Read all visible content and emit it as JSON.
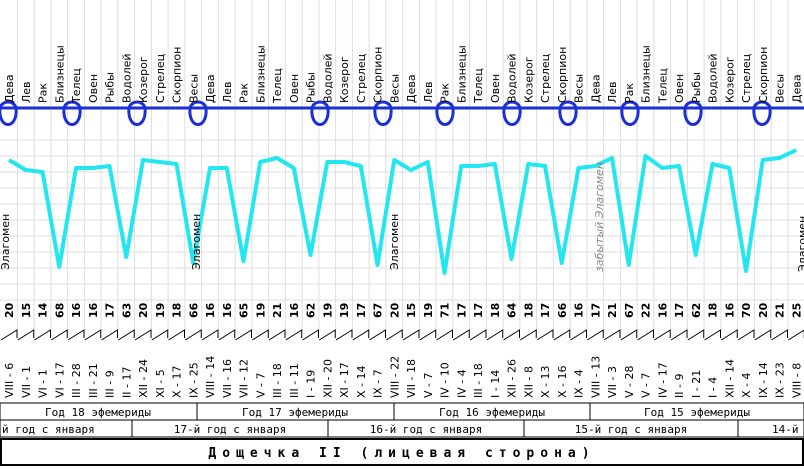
{
  "columns": [
    {
      "sign": "Дева",
      "number": "20",
      "date": "VIII - 6"
    },
    {
      "sign": "Лев",
      "number": "15",
      "date": "VII - 1"
    },
    {
      "sign": "Рак",
      "number": "14",
      "date": "VI - 1"
    },
    {
      "sign": "Близнецы",
      "number": "68",
      "date": "VI - 17"
    },
    {
      "sign": "Телец",
      "number": "16",
      "date": "III - 28"
    },
    {
      "sign": "Овен",
      "number": "16",
      "date": "III - 21"
    },
    {
      "sign": "Рыбы",
      "number": "17",
      "date": "III - 9"
    },
    {
      "sign": "Водолей",
      "number": "63",
      "date": "II - 17"
    },
    {
      "sign": "Козерог",
      "number": "20",
      "date": "XII - 24"
    },
    {
      "sign": "Стрелец",
      "number": "19",
      "date": "XI - 5"
    },
    {
      "sign": "Скорпион",
      "number": "18",
      "date": "X - 17"
    },
    {
      "sign": "Весы",
      "number": "66",
      "date": "IX - 25"
    },
    {
      "sign": "Дева",
      "number": "16",
      "date": "VIII - 14"
    },
    {
      "sign": "Лев",
      "number": "16",
      "date": "VII - 16"
    },
    {
      "sign": "Рак",
      "number": "65",
      "date": "VII - 12"
    },
    {
      "sign": "Близнецы",
      "number": "19",
      "date": "V - 7"
    },
    {
      "sign": "Телец",
      "number": "21",
      "date": "III - 18"
    },
    {
      "sign": "Овен",
      "number": "16",
      "date": "III - 11"
    },
    {
      "sign": "Рыбы",
      "number": "62",
      "date": "I - 19"
    },
    {
      "sign": "Водолей",
      "number": "19",
      "date": "XII - 20"
    },
    {
      "sign": "Козерог",
      "number": "19",
      "date": "XI - 17"
    },
    {
      "sign": "Стрелец",
      "number": "17",
      "date": "X - 14"
    },
    {
      "sign": "Скорпион",
      "number": "67",
      "date": "IX - 7"
    },
    {
      "sign": "Весы",
      "number": "20",
      "date": "VIII - 22"
    },
    {
      "sign": "Дева",
      "number": "15",
      "date": "VII - 18"
    },
    {
      "sign": "Лев",
      "number": "19",
      "date": "V - 7"
    },
    {
      "sign": "Рак",
      "number": "71",
      "date": "IV - 10"
    },
    {
      "sign": "Близнецы",
      "number": "17",
      "date": "IV - 4"
    },
    {
      "sign": "Телец",
      "number": "17",
      "date": "III - 18"
    },
    {
      "sign": "Овен",
      "number": "18",
      "date": "I - 14"
    },
    {
      "sign": "Водолей",
      "number": "64",
      "date": "XII - 26"
    },
    {
      "sign": "Козерог",
      "number": "18",
      "date": "XII - 8"
    },
    {
      "sign": "Стрелец",
      "number": "17",
      "date": "X - 13"
    },
    {
      "sign": "Скорпион",
      "number": "66",
      "date": "X - 16"
    },
    {
      "sign": "Весы",
      "number": "16",
      "date": "IX - 4"
    },
    {
      "sign": "Дева",
      "number": "17",
      "date": "VIII - 13"
    },
    {
      "sign": "Лев",
      "number": "21",
      "date": "VII - 3"
    },
    {
      "sign": "Рак",
      "number": "67",
      "date": "V - 28"
    },
    {
      "sign": "Близнецы",
      "number": "22",
      "date": "V - 7"
    },
    {
      "sign": "Телец",
      "number": "16",
      "date": "IV - 17"
    },
    {
      "sign": "Овен",
      "number": "17",
      "date": "II - 9"
    },
    {
      "sign": "Рыбы",
      "number": "62",
      "date": "I - 21"
    },
    {
      "sign": "Водолей",
      "number": "18",
      "date": "I - 4"
    },
    {
      "sign": "Козерог",
      "number": "16",
      "date": "XII - 14"
    },
    {
      "sign": "Стрелец",
      "number": "70",
      "date": "X - 4"
    },
    {
      "sign": "Скорпион",
      "number": "20",
      "date": "IX - 14"
    },
    {
      "sign": "Весы",
      "number": "21",
      "date": "IX - 23"
    },
    {
      "sign": "Дева",
      "number": "25",
      "date": "VIII - 8"
    }
  ],
  "labels": [
    "Элагомен",
    "Элагомен",
    "Элагомен",
    "забытый Элагомен",
    "Элагомен"
  ],
  "ephemeris_years": [
    "Год 18 эфемериды",
    "Год 17 эфемериды",
    "Год 16 эфемериды",
    "Год 15 эфемериды"
  ],
  "january_years": [
    "й год с января",
    "17-й год с января",
    "16-й год с января",
    "15-й год с января",
    "14-й"
  ],
  "title": "Дощечка II (лицевая сторона)"
}
